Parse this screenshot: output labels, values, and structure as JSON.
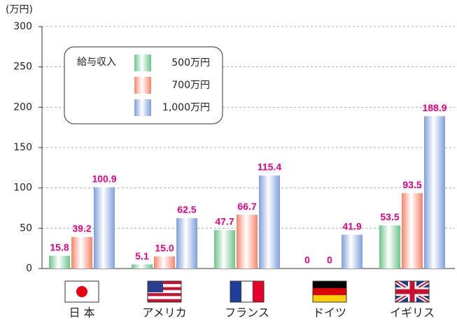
{
  "chart_data": {
    "type": "bar",
    "y_unit": "(万円)",
    "legend_title": "給与収入",
    "categories": [
      "日 本",
      "アメリカ",
      "フランス",
      "ドイツ",
      "イギリス"
    ],
    "series": [
      {
        "name": "500万円",
        "color": "#6cc48a",
        "values": [
          15.8,
          5.1,
          47.7,
          0,
          53.5
        ],
        "value_labels": [
          "15.8",
          "5.1",
          "47.7",
          "0",
          "53.5"
        ]
      },
      {
        "name": "700万円",
        "color": "#f4866c",
        "values": [
          39.2,
          15,
          66.7,
          0,
          93.5
        ],
        "value_labels": [
          "39.2",
          "15.0",
          "66.7",
          "0",
          "93.5"
        ]
      },
      {
        "name": "1,000万円",
        "color": "#7f9fdc",
        "values": [
          100.9,
          62.5,
          115.4,
          41.9,
          188.9
        ],
        "value_labels": [
          "100.9",
          "62.5",
          "115.4",
          "41.9",
          "188.9"
        ]
      }
    ],
    "value_label_color": "#e4007f",
    "ylim": [
      0,
      300
    ],
    "yticks": [
      0,
      50,
      100,
      150,
      200,
      250,
      300
    ],
    "grid": true,
    "legend": "upper left"
  }
}
